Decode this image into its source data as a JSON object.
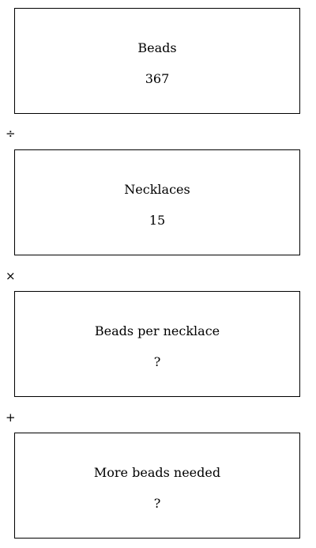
{
  "boxes": [
    {
      "label": "Beads",
      "value": "367"
    },
    {
      "label": "Necklaces",
      "value": "15"
    },
    {
      "label": "Beads per necklace",
      "value": "?"
    },
    {
      "label": "More beads needed",
      "value": "?"
    }
  ],
  "operators": [
    "÷",
    "×",
    "+"
  ]
}
